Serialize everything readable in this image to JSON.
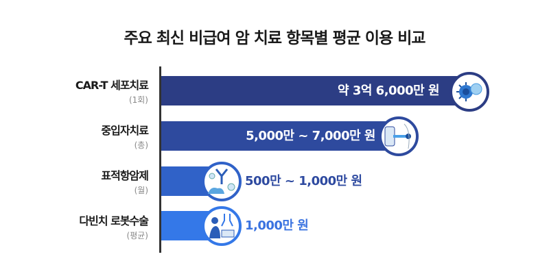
{
  "chart_data": {
    "type": "bar",
    "orientation": "horizontal",
    "title": "주요 최신 비급여 암 치료 항목별 평균 이용 비교",
    "categories": [
      {
        "label": "CAR-T 세포치료",
        "unit": "(1회)",
        "value_text": "약 3억 6,000만 원",
        "value_manwon": 36000,
        "color": "#2c3d84",
        "icon": "car-t-cell-icon"
      },
      {
        "label": "중입자치료",
        "unit": "(총)",
        "value_text": "5,000만 ~ 7,000만 원",
        "value_manwon": [
          5000,
          7000
        ],
        "color": "#2e4a9e",
        "icon": "heavy-ion-therapy-icon"
      },
      {
        "label": "표적항암제",
        "unit": "(월)",
        "value_text": "500만 ~ 1,000만 원",
        "value_manwon": [
          500,
          1000
        ],
        "color": "#3062c8",
        "icon": "antibody-icon"
      },
      {
        "label": "다빈치 로봇수술",
        "unit": "(평균)",
        "value_text": "1,000만 원",
        "value_manwon": 1000,
        "color": "#3478e8",
        "icon": "robot-surgery-icon"
      }
    ],
    "value_colors": [
      "#ffffff",
      "#ffffff",
      "#2e4aa0",
      "#3a73e0"
    ]
  }
}
